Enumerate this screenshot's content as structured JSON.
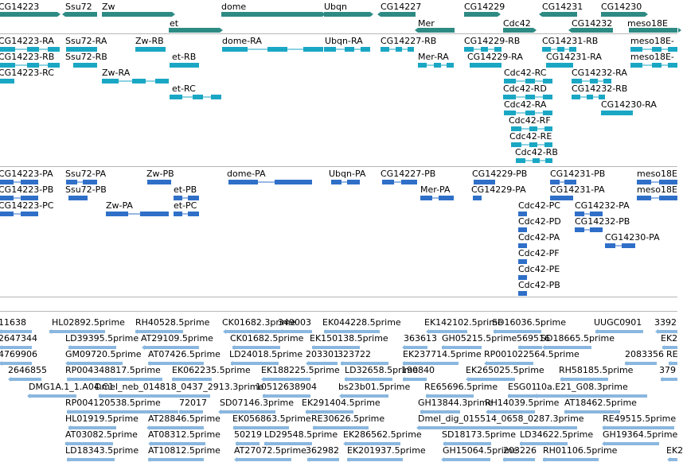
{
  "colors": {
    "gene": "#2e8b84",
    "transcript_rna": "#1aa7c4",
    "transcript_prot": "#2f6fc8",
    "est": "#8ab7df",
    "separator": "#b8b8b8"
  },
  "tracks": {
    "genes": {
      "labels": [
        "CG14223",
        "Ssu72",
        "Zw",
        "dome",
        "Ubqn",
        "CG14227",
        "CG14229",
        "CG14231",
        "CG14230",
        "et",
        "Mer",
        "Cdc42",
        "CG14232",
        "meso18E"
      ]
    },
    "rna": {
      "labels": [
        "CG14223-RA",
        "Ssu72-RA",
        "Zw-RB",
        "dome-RA",
        "Ubqn-RA",
        "CG14227-RB",
        "CG14229-RB",
        "CG14231-RB",
        "meso18E-",
        "CG14223-RB",
        "Ssu72-RB",
        "et-RB",
        "Mer-RA",
        "CG14229-RA",
        "CG14231-RA",
        "meso18E-",
        "CG14223-RC",
        "Zw-RA",
        "Cdc42-RC",
        "CG14232-RA",
        "et-RC",
        "Cdc42-RD",
        "CG14232-RB",
        "Cdc42-RA",
        "CG14230-RA",
        "Cdc42-RF",
        "Cdc42-RE",
        "Cdc42-RB"
      ]
    },
    "protein": {
      "labels": [
        "CG14223-PA",
        "Ssu72-PA",
        "Zw-PB",
        "dome-PA",
        "Ubqn-PA",
        "CG14227-PB",
        "CG14229-PB",
        "CG14231-PB",
        "meso18E",
        "CG14223-PB",
        "Ssu72-PB",
        "et-PB",
        "Mer-PA",
        "CG14229-PA",
        "CG14231-PA",
        "meso18E",
        "CG14223-PC",
        "Zw-PA",
        "et-PC",
        "Cdc42-PC",
        "CG14232-PA",
        "Cdc42-PD",
        "CG14232-PB",
        "Cdc42-PA",
        "CG14230-PA",
        "Cdc42-PF",
        "Cdc42-PE",
        "Cdc42-PB"
      ]
    },
    "est": {
      "labels": [
        "11638",
        "HL02892.5prime",
        "RH40528.5prime",
        "CK01682.3prime",
        "349003",
        "EK044228.5prime",
        "EK142102.5prime",
        "SD16036.5prime",
        "UUGC0901",
        "3392",
        "2647344",
        "LD39395.5prime",
        "AT29109.5prime",
        "CK01682.5prime",
        "EK150138.5prime",
        "363613",
        "GH05215.5prime",
        "569516",
        "SD18665.5prime",
        "EK2",
        "4769906",
        "GM09720.5prime",
        "AT07426.5prime",
        "LD24018.5prime",
        "203301",
        "323722",
        "EK237714.5prime",
        "RP001022564.5prime",
        "2083356",
        "RE",
        "2646855",
        "RP004348817.5prime",
        "EK062235.5prime",
        "EK188225.5prime",
        "LD32658.5prime",
        "190840",
        "EK265025.5prime",
        "RH58185.5prime",
        "379",
        "DMG1A.1_1.A04.C1",
        "Dmel_neb_014818_0437_2913.3prime",
        "10512638904",
        "bs23b01.5prime",
        "RE65696.5prime",
        "ESG01",
        "10a.E21_G08.3prime",
        "RP004120538.5prime",
        "72017",
        "SD07146.3prime",
        "EK291404.5prime",
        "GH13844.3prime",
        "RH14039.5prime",
        "AT18462.5prime",
        "HL01919.5prime",
        "AT28846.5prime",
        "EK056863.5prime",
        "RE30626.5prime",
        "Dmel_dig_015514_0658_0287.3prime",
        "RE49515.5prime",
        "AT03082.5prime",
        "AT08312.5prime",
        "50219",
        "LD29548.5prime",
        "EK286562.5prime",
        "SD18173.5prime",
        "LD34622.5prime",
        "GH19364.5prime",
        "LD18343.5prime",
        "AT10812.5prime",
        "AT27072.5prime",
        "362982",
        "EK201937.5prime",
        "GH15064.5prime",
        "203226",
        "RH01106.5prime",
        "EK2"
      ]
    }
  }
}
